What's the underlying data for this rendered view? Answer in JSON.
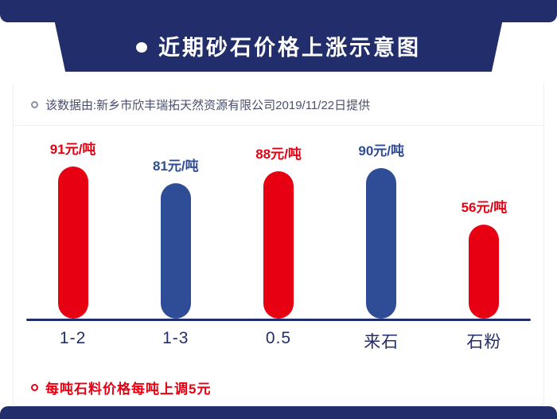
{
  "header": {
    "title": "近期砂石价格上涨示意图",
    "source_note": "该数据由:新乡市欣丰瑞拓天然资源有限公司2019/11/22日提供"
  },
  "chart_data": {
    "type": "bar",
    "title": "近期砂石价格上涨示意图",
    "categories": [
      "1-2",
      "1-3",
      "0.5",
      "来石",
      "石粉"
    ],
    "values": [
      91,
      81,
      88,
      90,
      56
    ],
    "value_labels": [
      "91元/吨",
      "81元/吨",
      "88元/吨",
      "90元/吨",
      "56元/吨"
    ],
    "unit_suffix": "元/吨",
    "bar_colors": [
      "#e60012",
      "#2f4d96",
      "#e60012",
      "#2f4d96",
      "#e60012"
    ],
    "ylim": [
      0,
      100
    ],
    "xlabel": "",
    "ylabel": "",
    "grid": false,
    "legend": "none"
  },
  "footer": {
    "note": "每吨石料价格每吨上调5元"
  },
  "colors": {
    "navy": "#222d6b",
    "red": "#e60012",
    "blue_bar": "#2f4d96",
    "source_text": "#4a4f6e"
  }
}
